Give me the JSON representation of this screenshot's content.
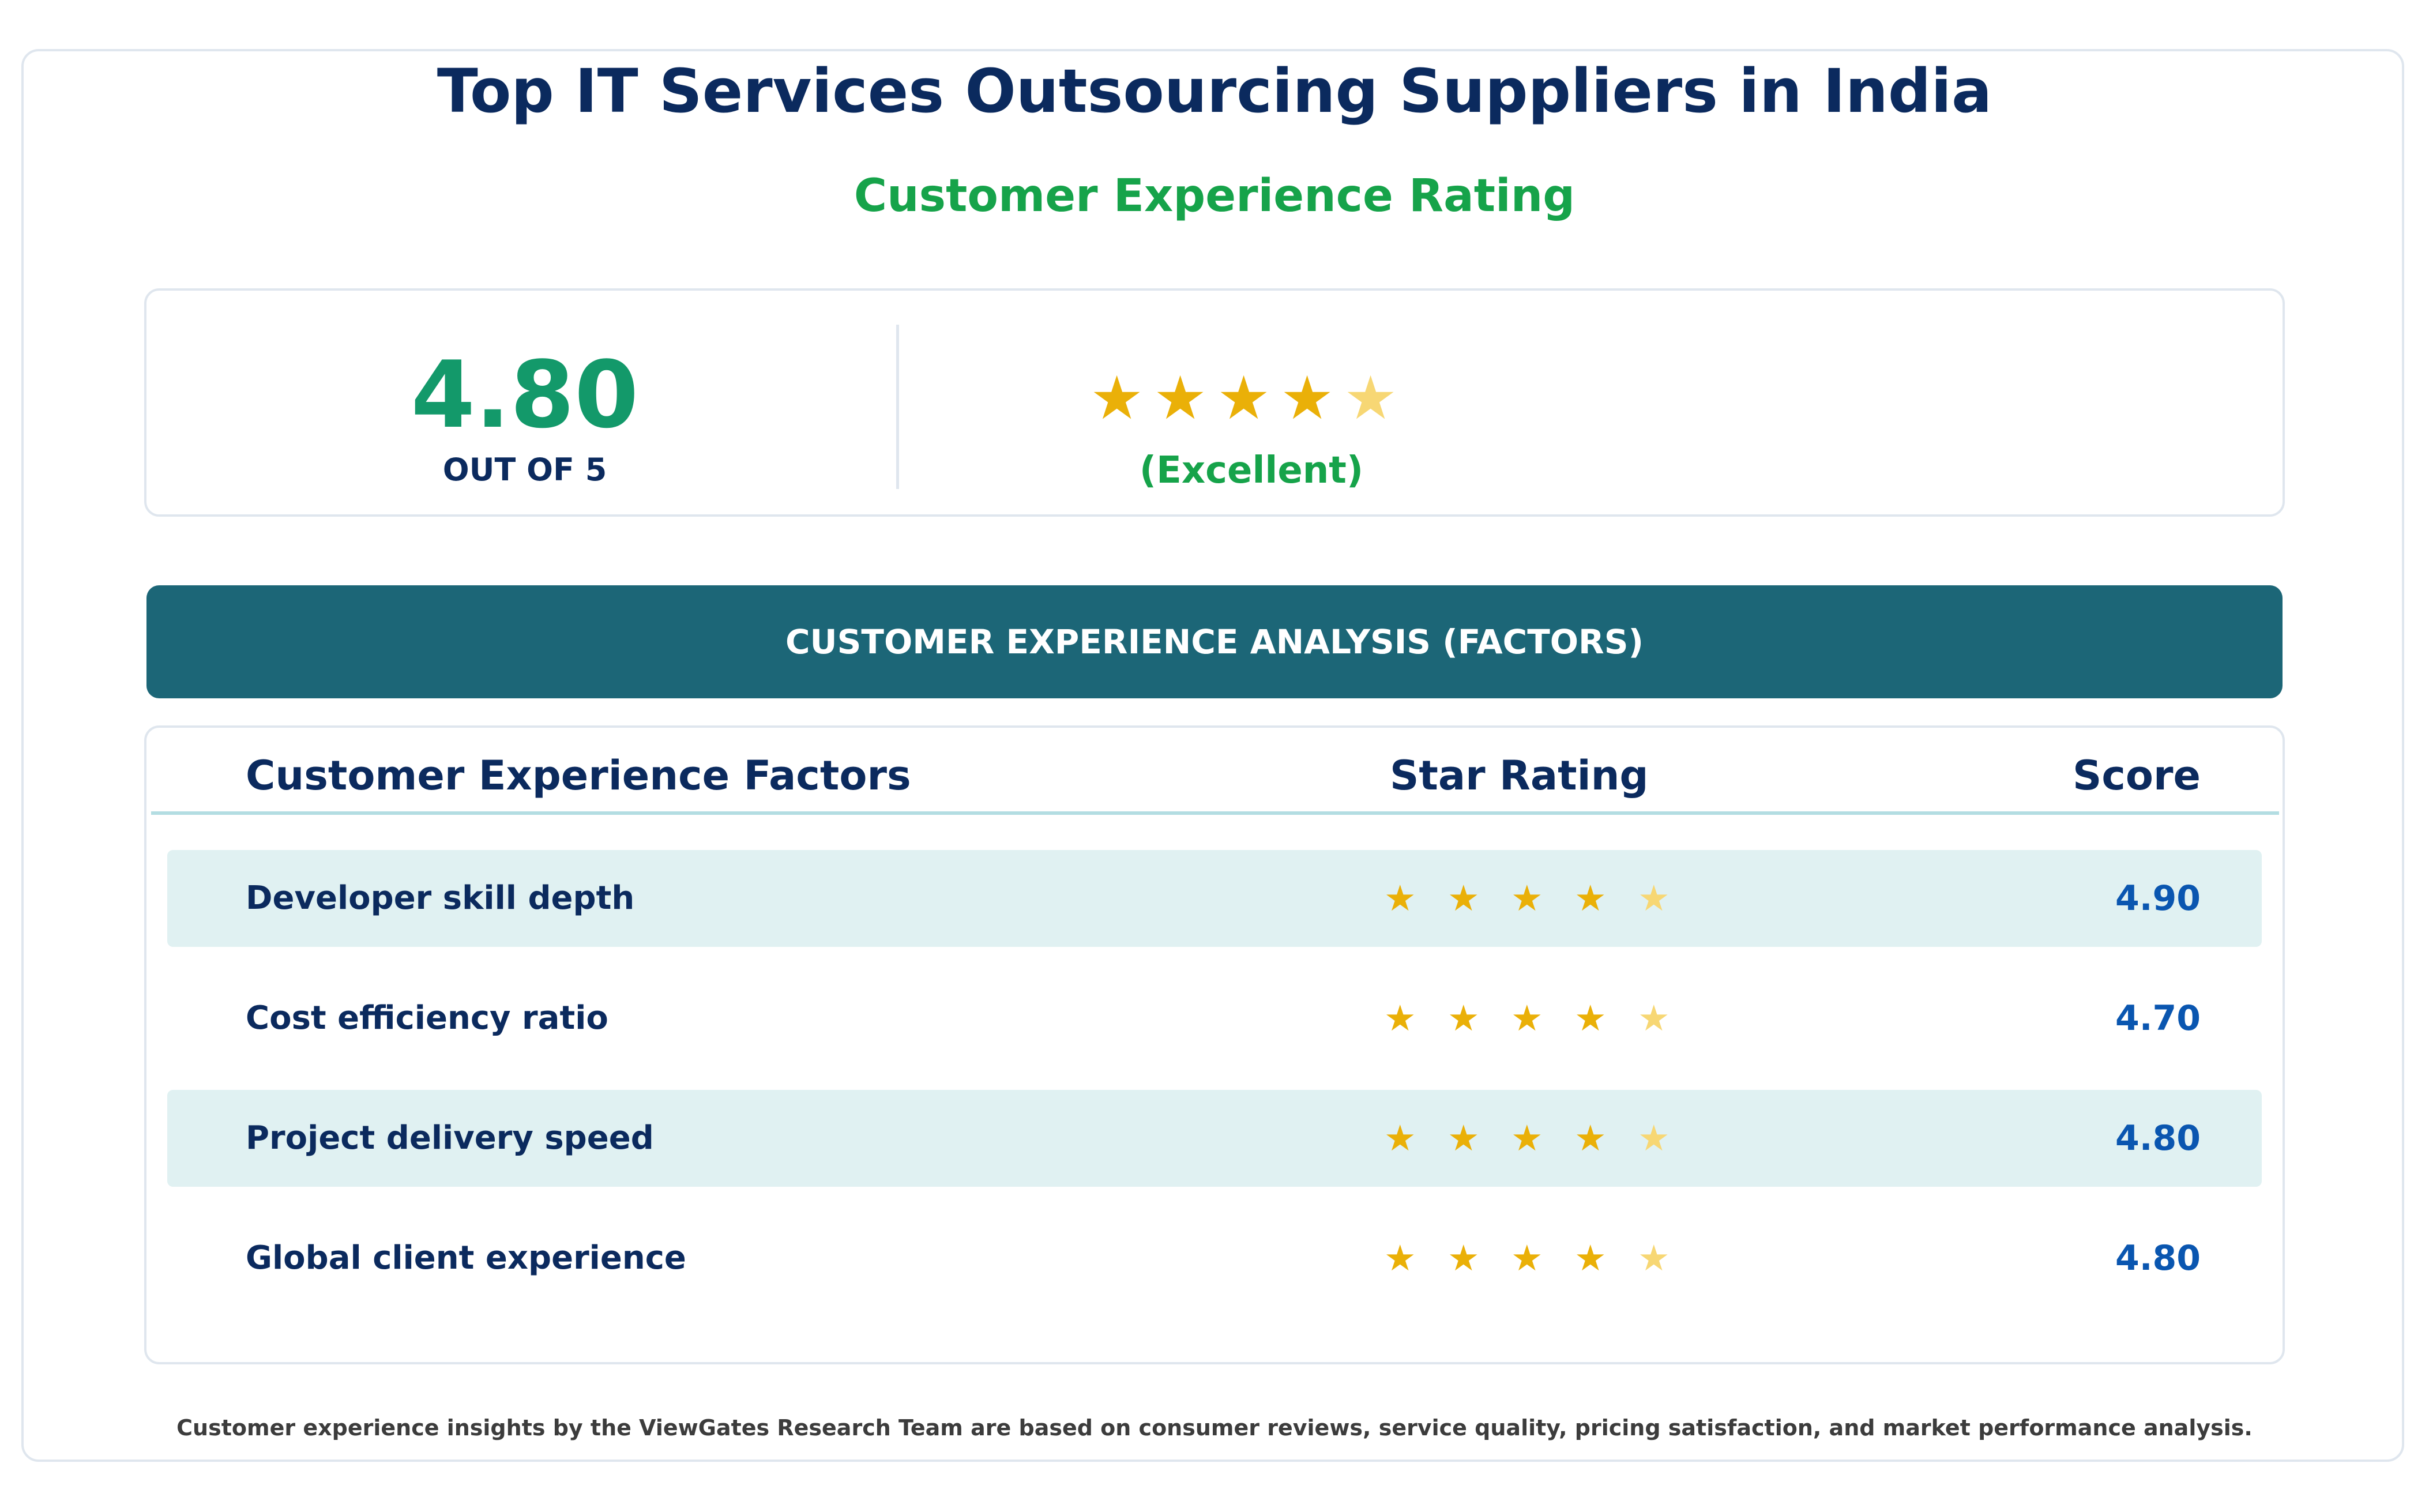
{
  "title": "Top IT Services Outsourcing Suppliers in India",
  "subtitle": "Customer Experience Rating",
  "summary": {
    "score": "4.80",
    "out_of_label": "OUT OF 5",
    "stars": 4.8,
    "rating_label": "(Excellent)"
  },
  "banner": "CUSTOMER EXPERIENCE ANALYSIS (FACTORS)",
  "table": {
    "headers": {
      "factor": "Customer Experience Factors",
      "stars": "Star Rating",
      "score": "Score"
    },
    "rows": [
      {
        "factor": "Developer skill depth",
        "score": "4.90",
        "stars": 4.9
      },
      {
        "factor": "Cost efficiency ratio",
        "score": "4.70",
        "stars": 4.7
      },
      {
        "factor": "Project delivery speed",
        "score": "4.80",
        "stars": 4.8
      },
      {
        "factor": "Global client experience",
        "score": "4.80",
        "stars": 4.8
      }
    ]
  },
  "footer": "Customer experience insights by the ViewGates Research Team are based on consumer reviews, service quality, pricing satisfaction, and market performance analysis.",
  "colors": {
    "title": "#0b2a5e",
    "accent_green": "#16a34a",
    "score_green": "#13996a",
    "banner": "#1c6677",
    "row_shade": "#e0f1f2",
    "score_blue": "#0a56b0",
    "star": "#eab008",
    "star_partial": "#f7d774"
  },
  "icons": {
    "star": "star-icon"
  }
}
